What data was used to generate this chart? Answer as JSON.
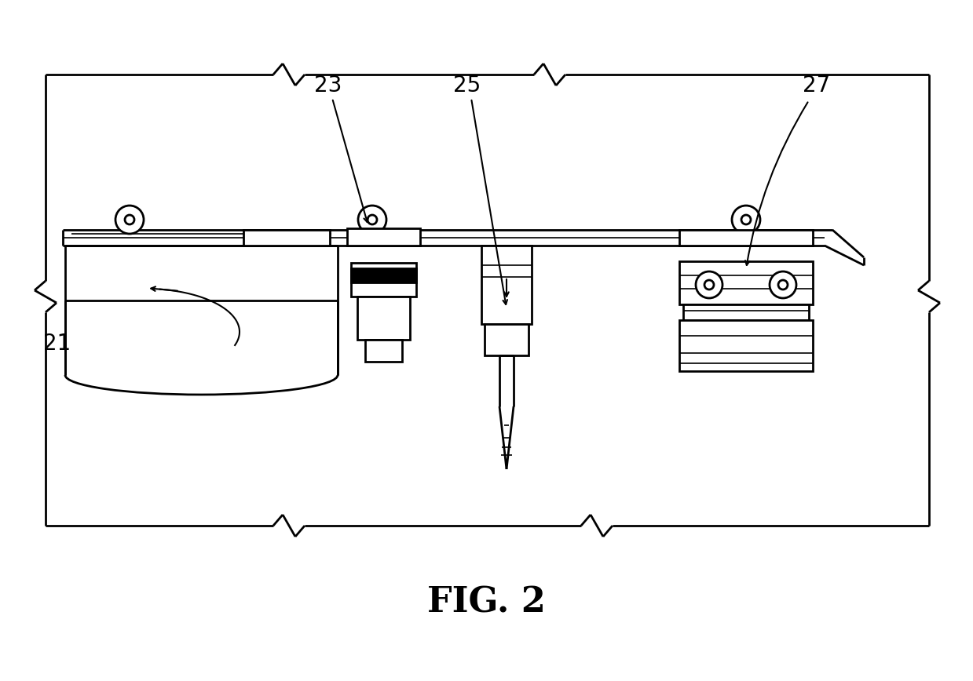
{
  "title": "FIG. 2",
  "title_fontsize": 32,
  "bg_color": "#ffffff",
  "line_color": "#000000",
  "lw_main": 2.0,
  "lw_thin": 1.2
}
